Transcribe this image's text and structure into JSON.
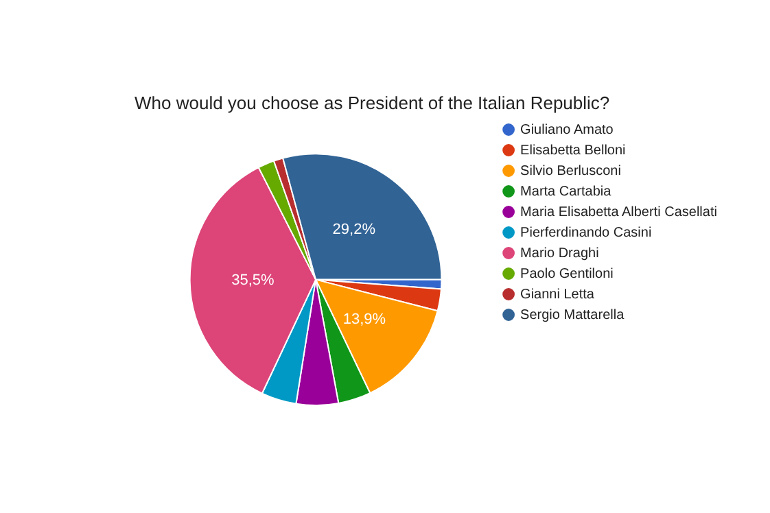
{
  "chart_data": {
    "type": "pie",
    "title": "Who would you choose as President of the Italian Republic?",
    "categories": [
      "Giuliano Amato",
      "Elisabetta Belloni",
      "Silvio Berlusconi",
      "Marta Cartabia",
      "Maria Elisabetta Alberti Casellati",
      "Pierferdinando Casini",
      "Mario Draghi",
      "Paolo Gentiloni",
      "Gianni Letta",
      "Sergio Mattarella"
    ],
    "values": [
      1.2,
      2.8,
      13.9,
      4.2,
      5.4,
      4.5,
      35.5,
      2.1,
      1.2,
      29.2
    ],
    "colors": [
      "#3366cc",
      "#dc3912",
      "#ff9900",
      "#109618",
      "#990099",
      "#0099c6",
      "#dd4477",
      "#66aa00",
      "#b82e2e",
      "#316395"
    ],
    "value_labels": [
      null,
      null,
      "13,9%",
      null,
      null,
      null,
      "35,5%",
      null,
      null,
      "29,2%"
    ],
    "legend": "right"
  }
}
